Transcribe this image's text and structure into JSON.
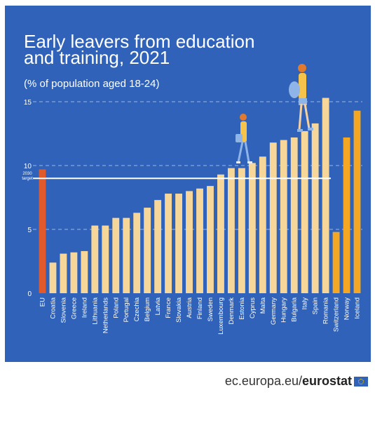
{
  "page": {
    "title": "Early leavers from education and training, 2021",
    "subtitle": "(% of population aged 18-24)",
    "footer_text": "ec.europa.eu/",
    "footer_brand": "eurostat"
  },
  "colors": {
    "background": "#2f62b8",
    "eu_bar": "#e05a2b",
    "member_bar": "#f7d69a",
    "efta_bar": "#f5a623",
    "target_line": "#ffffff",
    "text": "#ffffff"
  },
  "icons": [
    "walking-person-with-bag-icon",
    "walking-person-with-backpack-icon",
    "eu-flag-icon"
  ],
  "chart_data": {
    "type": "bar",
    "title": "Early leavers from education and training, 2021",
    "subtitle": "(% of population aged 18-24)",
    "xlabel": "",
    "ylabel": "",
    "ylim": [
      0,
      15
    ],
    "yticks": [
      0,
      5,
      10,
      15
    ],
    "grid": "dashed horizontal at 5, 10, 15",
    "target": {
      "label": "2030 target",
      "value": 9
    },
    "categories": [
      "EU",
      "Croatia",
      "Slovenia",
      "Greece",
      "Ireland",
      "Lithuania",
      "Netherlands",
      "Poland",
      "Portugal",
      "Czechia",
      "Belgium",
      "Latvia",
      "France",
      "Slovakia",
      "Austria",
      "Finland",
      "Sweden",
      "Luxembourg",
      "Denmark",
      "Estonia",
      "Cyprus",
      "Malta",
      "Germany",
      "Hungary",
      "Bulgaria",
      "Italy",
      "Spain",
      "Romania",
      "Switzerland",
      "Norway",
      "Iceland"
    ],
    "values": [
      9.7,
      2.4,
      3.1,
      3.2,
      3.3,
      5.3,
      5.3,
      5.9,
      5.9,
      6.3,
      6.7,
      7.3,
      7.8,
      7.8,
      8.0,
      8.2,
      8.4,
      9.3,
      9.8,
      9.8,
      10.2,
      10.7,
      11.8,
      12.0,
      12.2,
      12.7,
      13.3,
      15.3,
      4.8,
      12.2,
      14.3
    ],
    "groups": [
      "eu",
      "member",
      "member",
      "member",
      "member",
      "member",
      "member",
      "member",
      "member",
      "member",
      "member",
      "member",
      "member",
      "member",
      "member",
      "member",
      "member",
      "member",
      "member",
      "member",
      "member",
      "member",
      "member",
      "member",
      "member",
      "member",
      "member",
      "member",
      "efta",
      "efta",
      "efta"
    ]
  }
}
